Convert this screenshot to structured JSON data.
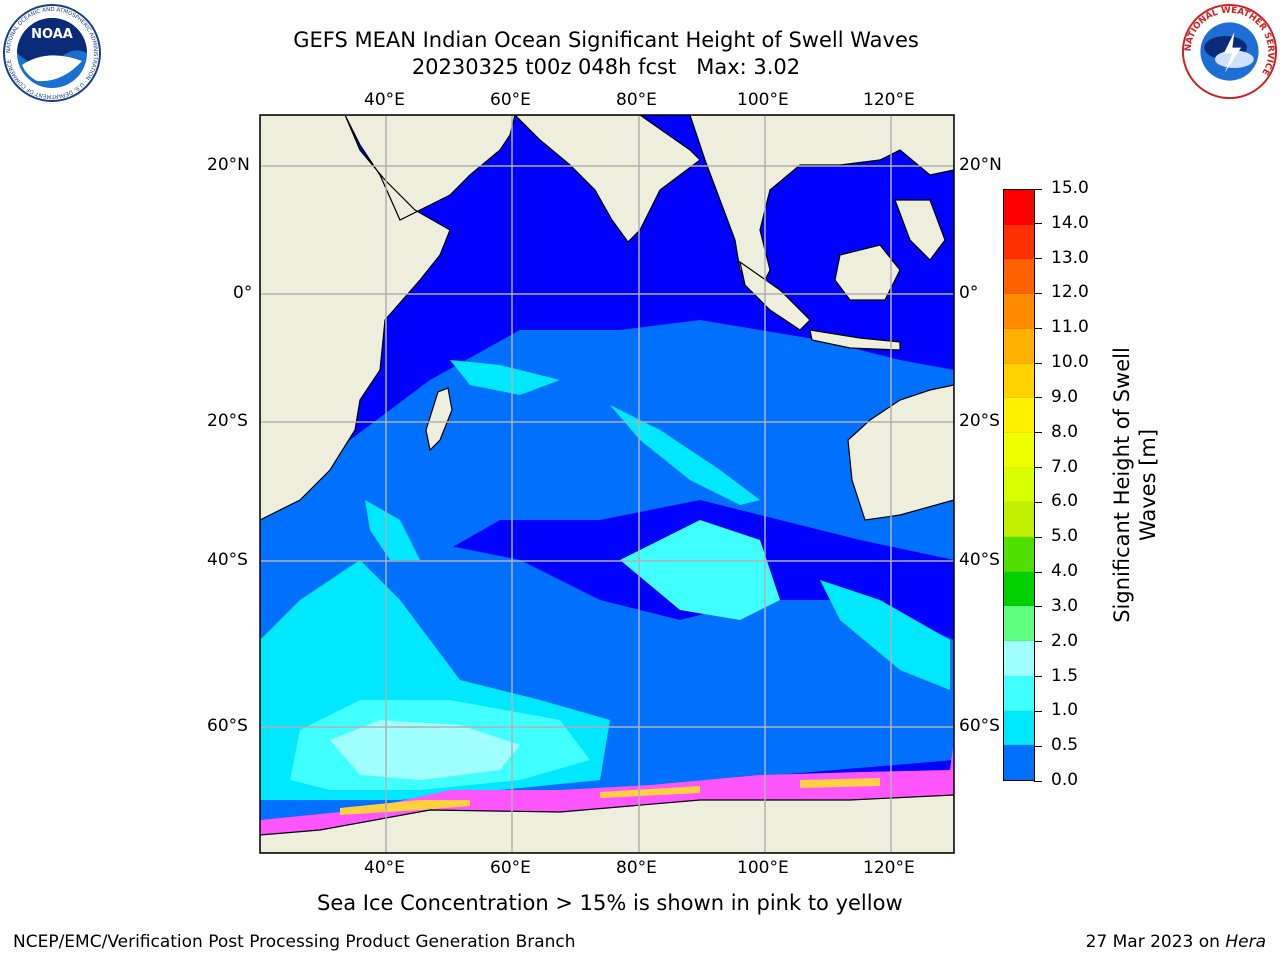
{
  "header": {
    "title_line1": "GEFS MEAN Indian Ocean Significant Height of Swell Waves",
    "title_line2": "20230325 t00z 048h fcst   Max: 3.02"
  },
  "logos": {
    "noaa_text": "NOAA",
    "noaa_ring": "NATIONAL OCEANIC AND ATMOSPHERIC ADMINISTRATION · U.S. DEPARTMENT OF COMMERCE",
    "nws_ring": "NATIONAL WEATHER SERVICE"
  },
  "map": {
    "lon_labels": [
      "40°E",
      "60°E",
      "80°E",
      "100°E",
      "120°E"
    ],
    "lat_labels": [
      "20°N",
      "0°",
      "20°S",
      "40°S",
      "60°S"
    ],
    "colors": {
      "land": "#eeeedd",
      "ocean_low": "#0000ff",
      "ocean_mid": "#0070ff",
      "ocean_high": "#00e8ff",
      "ocean_higher": "#40ffff",
      "ocean_top": "#a0ffff",
      "ice_pink": "#ff55ff",
      "ice_yellow": "#ffd040",
      "grid": "#b0b0b0"
    }
  },
  "colorbar": {
    "label_line1": "Significant Height of Swell",
    "label_line2": "Waves [m]",
    "ticks": [
      "15.0",
      "14.0",
      "13.0",
      "12.0",
      "11.0",
      "10.0",
      "9.0",
      "8.0",
      "7.0",
      "6.0",
      "5.0",
      "4.0",
      "3.0",
      "2.0",
      "1.5",
      "1.0",
      "0.5",
      "0.0"
    ],
    "colors": [
      "#ff0000",
      "#ff3000",
      "#ff6000",
      "#ff8c00",
      "#ffb000",
      "#ffd200",
      "#fff000",
      "#f0ff00",
      "#d8ff00",
      "#c0f000",
      "#50e000",
      "#00d000",
      "#60ff80",
      "#a0ffff",
      "#40ffff",
      "#00e8ff",
      "#0070ff",
      "#0000ff"
    ]
  },
  "caption": "Sea Ice Concentration > 15% is shown in pink to yellow",
  "footer": {
    "left": "NCEP/EMC/Verification Post Processing Product Generation Branch",
    "right_date": "27 Mar 2023 on ",
    "right_host": "Hera"
  }
}
